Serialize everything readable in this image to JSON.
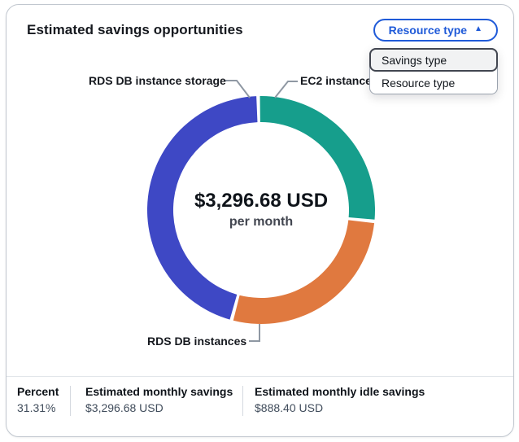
{
  "header": {
    "title": "Estimated savings opportunities",
    "filter_button": {
      "label": "Resource type",
      "caret_icon": "up-triangle"
    }
  },
  "dropdown_menu": {
    "items": [
      {
        "label": "Savings type",
        "selected": true
      },
      {
        "label": "Resource type",
        "selected": false
      }
    ]
  },
  "chart_data": {
    "type": "pie",
    "variant": "donut",
    "title": "Estimated savings opportunities",
    "center_label": {
      "primary": "$3,296.68 USD",
      "secondary": "per month"
    },
    "start_angle_deg": -1.5,
    "pad_deg": 1.8,
    "legend_position": "callout-labels",
    "segments": [
      {
        "label": "EC2 instances",
        "percent": 27.0,
        "color": "#169e8c"
      },
      {
        "label": "RDS DB instances",
        "percent": 27.6,
        "color": "#e0793f"
      },
      {
        "label": "RDS DB instance storage",
        "percent": 45.4,
        "color": "#3e48c5"
      }
    ]
  },
  "stats": [
    {
      "label": "Percent",
      "value": "31.31%"
    },
    {
      "label": "Estimated monthly savings",
      "value": "$3,296.68 USD"
    },
    {
      "label": "Estimated monthly idle savings",
      "value": "$888.40 USD"
    }
  ],
  "colors": {
    "accent_blue": "#1f5ad8",
    "text_primary": "#16191f",
    "text_secondary": "#414d5c",
    "card_border": "#c1c7cf",
    "leader_line": "#8f98a3",
    "selected_item_border": "#424650"
  }
}
